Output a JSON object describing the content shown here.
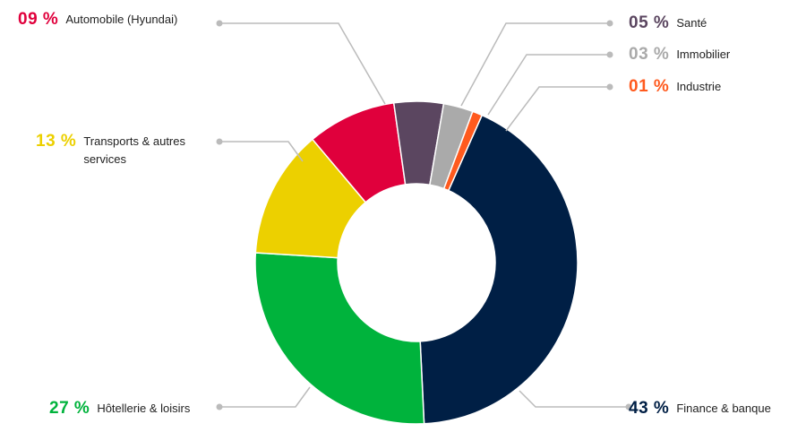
{
  "chart_data": {
    "type": "pie",
    "variant": "donut",
    "categories": [
      "Finance & banque",
      "Hôtellerie & loisirs",
      "Transports & autres services",
      "Automobile (Hyundai)",
      "Santé",
      "Immobilier",
      "Industrie"
    ],
    "values": [
      43,
      27,
      13,
      9,
      5,
      3,
      1
    ],
    "value_labels": [
      "43 %",
      "27 %",
      "13 %",
      "09 %",
      "05 %",
      "03 %",
      "01 %"
    ],
    "colors": [
      "#001f45",
      "#00b33c",
      "#ecd000",
      "#e0003c",
      "#5b4660",
      "#aaaaaa",
      "#ff5a1e"
    ],
    "title": "",
    "legend_placement": "callouts around the chart"
  },
  "annotations": [
    {
      "value": "43 %",
      "label_lines": [
        "Finance & banque"
      ],
      "color": "#001f45"
    },
    {
      "value": "27 %",
      "label_lines": [
        "Hôtellerie & loisirs"
      ],
      "color": "#00b33c"
    },
    {
      "value": "13 %",
      "label_lines": [
        "Transports & autres",
        "services"
      ],
      "color": "#ecd000"
    },
    {
      "value": "09 %",
      "label_lines": [
        "Automobile (Hyundai)"
      ],
      "color": "#e0003c"
    },
    {
      "value": "05 %",
      "label_lines": [
        "Santé"
      ],
      "color": "#5b4660"
    },
    {
      "value": "03 %",
      "label_lines": [
        "Immobilier"
      ],
      "color": "#aaaaaa"
    },
    {
      "value": "01 %",
      "label_lines": [
        "Industrie"
      ],
      "color": "#ff5a1e"
    }
  ],
  "leader_color": "#bbbbbb"
}
